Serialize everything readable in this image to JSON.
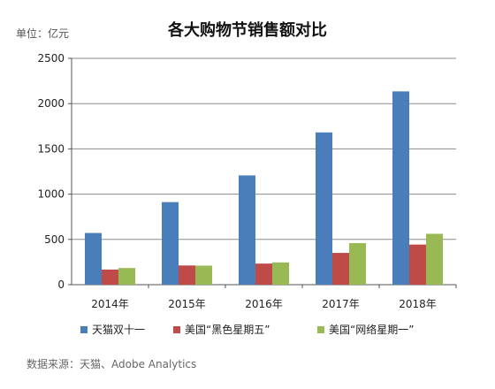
{
  "chart_data": {
    "type": "bar",
    "title": "各大购物节销售额对比",
    "unit_label": "单位：亿元",
    "source_label": "数据来源：天猫、Adobe Analytics",
    "categories": [
      "2014年",
      "2015年",
      "2016年",
      "2017年",
      "2018年"
    ],
    "series": [
      {
        "name": "天猫双十一",
        "color": "#4a7ebb",
        "values": [
          571,
          912,
          1207,
          1682,
          2135
        ]
      },
      {
        "name": "美国“黑色星期五”",
        "color": "#be4b48",
        "values": [
          167,
          212,
          233,
          351,
          443
        ]
      },
      {
        "name": "美国“网络星期一”",
        "color": "#98b954",
        "values": [
          184,
          210,
          246,
          459,
          562
        ]
      }
    ],
    "ylim": [
      0,
      2500
    ],
    "yticks": [
      "0",
      "500",
      "1000",
      "1500",
      "2000",
      "2500"
    ],
    "grid": true,
    "legend_position": "bottom"
  }
}
